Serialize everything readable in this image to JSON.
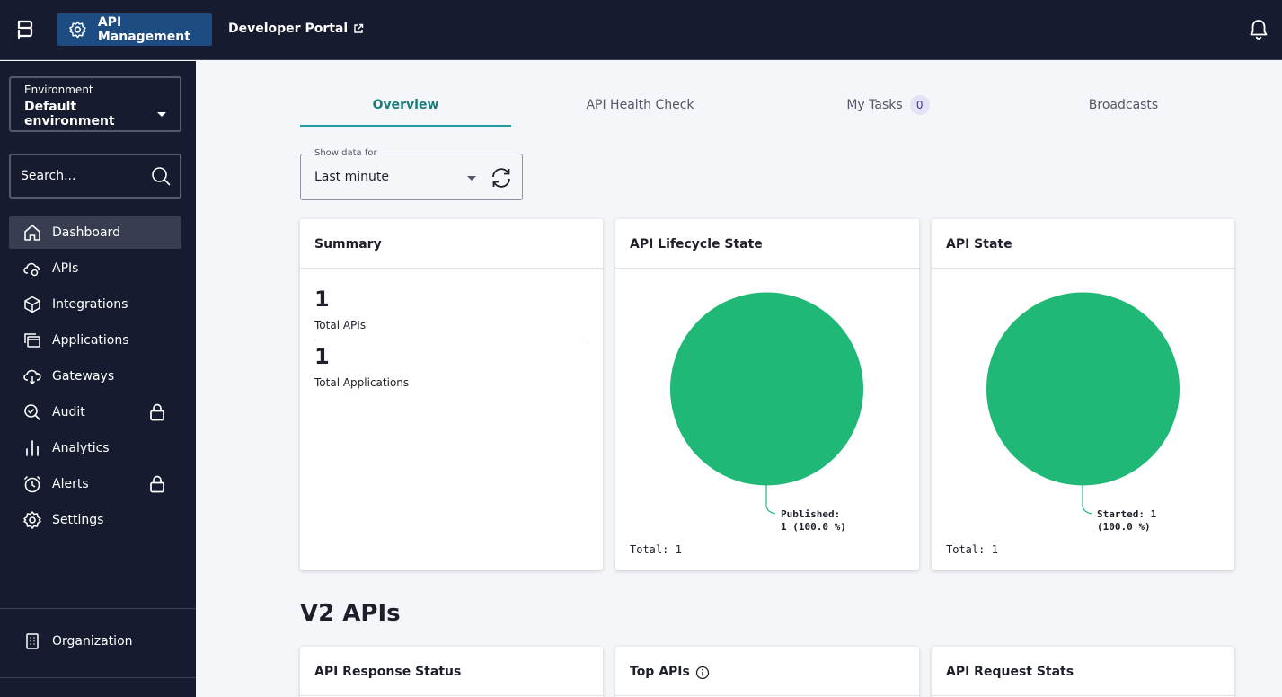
{
  "topbar": {
    "app_label": "API Management",
    "dev_portal_label": "Developer Portal"
  },
  "sidebar": {
    "environment_label": "Environment",
    "environment_value": "Default environment",
    "search_placeholder": "Search...",
    "items": [
      {
        "label": "Dashboard",
        "icon": "home-icon"
      },
      {
        "label": "APIs",
        "icon": "cloud-api-icon"
      },
      {
        "label": "Integrations",
        "icon": "cube-icon"
      },
      {
        "label": "Applications",
        "icon": "applications-icon"
      },
      {
        "label": "Gateways",
        "icon": "gateway-cloud-icon"
      },
      {
        "label": "Audit",
        "icon": "audit-search-icon",
        "locked": true
      },
      {
        "label": "Analytics",
        "icon": "bar-chart-icon"
      },
      {
        "label": "Alerts",
        "icon": "alarm-clock-icon",
        "locked": true
      },
      {
        "label": "Settings",
        "icon": "gear-icon"
      }
    ],
    "organization_label": "Organization"
  },
  "tabs": [
    {
      "label": "Overview",
      "active": true
    },
    {
      "label": "API Health Check"
    },
    {
      "label": "My Tasks",
      "badge": "0"
    },
    {
      "label": "Broadcasts"
    }
  ],
  "filter": {
    "label": "Show data for",
    "value": "Last minute"
  },
  "summary": {
    "title": "Summary",
    "stats": [
      {
        "value": "1",
        "label": "Total APIs"
      },
      {
        "value": "1",
        "label": "Total Applications"
      }
    ]
  },
  "lifecycle": {
    "title": "API Lifecycle State",
    "label_line1": "Published:",
    "label_line2": "1 (100.0 %)",
    "total": "Total: 1",
    "color": "#1fb877"
  },
  "state": {
    "title": "API State",
    "label_line1": "Started: 1",
    "label_line2": "(100.0 %)",
    "total": "Total: 1",
    "color": "#1fb877"
  },
  "v2_section": {
    "title": "V2 APIs",
    "cards": [
      "API Response Status",
      "Top APIs",
      "API Request Stats"
    ]
  }
}
